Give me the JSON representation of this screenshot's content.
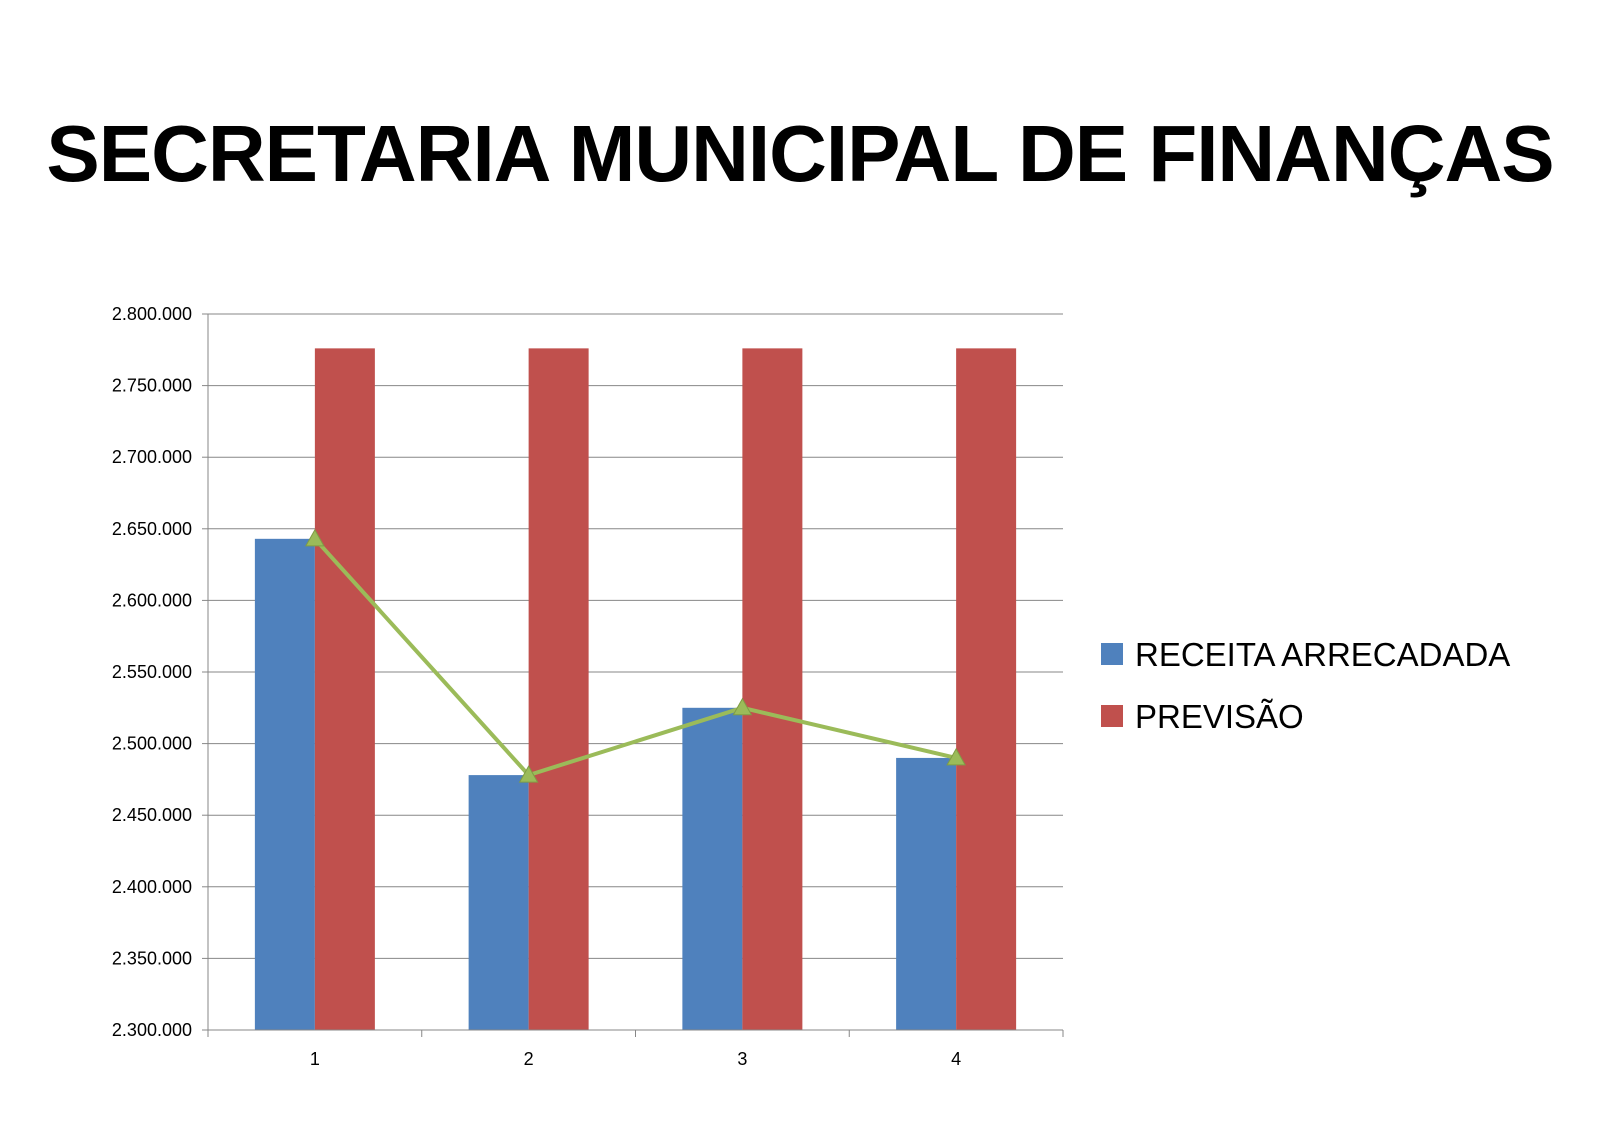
{
  "slide": {
    "title": "SECRETARIA MUNICIPAL DE FINANÇAS"
  },
  "chart_data": {
    "type": "bar",
    "categories": [
      "1",
      "2",
      "3",
      "4"
    ],
    "ylim": [
      2300000,
      2800000
    ],
    "ytick_step": 50000,
    "ytick_labels": [
      "2.300.000",
      "2.350.000",
      "2.400.000",
      "2.450.000",
      "2.500.000",
      "2.550.000",
      "2.600.000",
      "2.650.000",
      "2.700.000",
      "2.750.000",
      "2.800.000"
    ],
    "grid": true,
    "legend_position": "right",
    "series": [
      {
        "name": "RECEITA ARRECADADA",
        "kind": "bar",
        "color": "#4F81BD",
        "values": [
          2643000,
          2478000,
          2525000,
          2490000
        ]
      },
      {
        "name": "PREVISÃO",
        "kind": "bar",
        "color": "#C0504D",
        "values": [
          2776000,
          2776000,
          2776000,
          2776000
        ]
      },
      {
        "kind": "line",
        "marker": "triangle",
        "color": "#9BBB59",
        "values": [
          2643000,
          2478000,
          2525000,
          2490000
        ]
      }
    ],
    "title": "",
    "xlabel": "",
    "ylabel": ""
  }
}
